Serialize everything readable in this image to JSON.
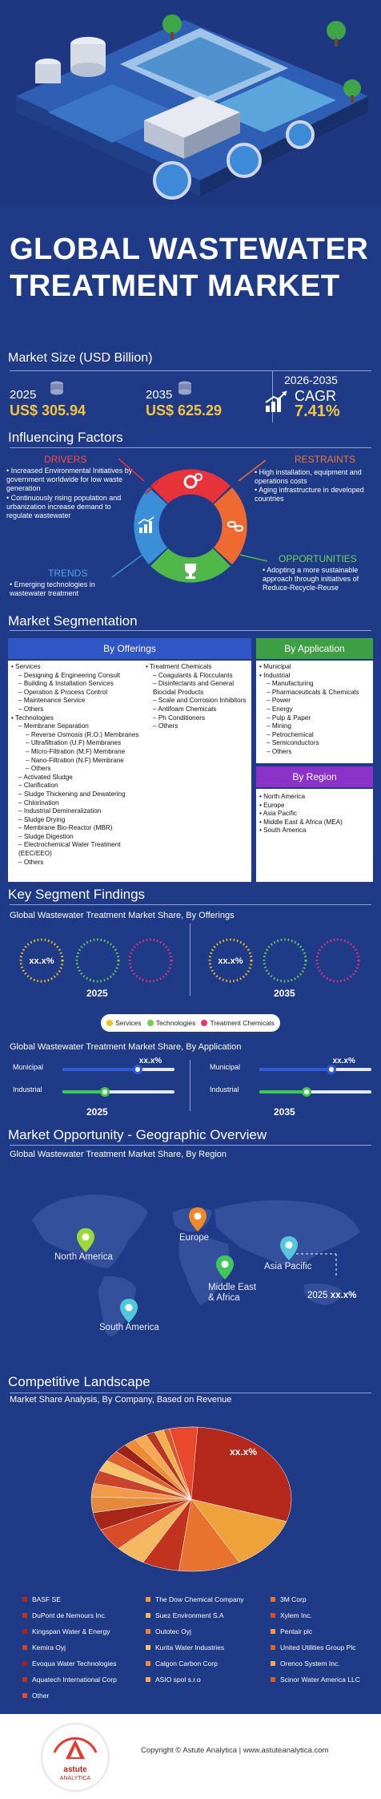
{
  "title": {
    "line1": "GLOBAL WASTEWATER",
    "line2": "TREATMENT MARKET"
  },
  "market_size": {
    "heading": "Market Size (USD Billion)",
    "y2025_year": "2025",
    "y2025_value": "US$ 305.94",
    "y2035_year": "2035",
    "y2035_value": "US$ 625.29",
    "cagr_period": "2026-2035",
    "cagr_label": "CAGR",
    "cagr_value": "7.41%"
  },
  "influencing": {
    "heading": "Influencing Factors",
    "drivers_title": "DRIVERS",
    "drivers": [
      "Increased Environmental Initiatives by government worldwide for low waste generation",
      "Continuously rising population and urbanization increase demand to regulate wastewater"
    ],
    "restraints_title": "RESTRAINTS",
    "restraints": [
      "High installation, equipment and operations costs",
      "Aging infrastructure in developed countries"
    ],
    "trends_title": "TRENDS",
    "trends": [
      "Emerging technologies in wastewater treatment"
    ],
    "opportunities_title": "OPPORTUNITIES",
    "opportunities": [
      "Adopting a more sustainable approach through initiatives of Reduce-Recycle-Reuse"
    ],
    "colors": {
      "drivers": "#e8333a",
      "restraints": "#ef6a2f",
      "opportunities": "#4fb848",
      "trends": "#3a8fd8"
    }
  },
  "segmentation": {
    "heading": "Market Segmentation",
    "offerings_title": "By Offerings",
    "application_title": "By Application",
    "region_title": "By Region",
    "offerings_left": [
      {
        "t": "Services",
        "l": 0
      },
      {
        "t": "Designing & Engineering Consult",
        "l": 1
      },
      {
        "t": "Building & Installation Services",
        "l": 1
      },
      {
        "t": "Operation & Process Control",
        "l": 1
      },
      {
        "t": "Maintenance Service",
        "l": 1
      },
      {
        "t": "Others",
        "l": 1
      },
      {
        "t": "Technologies",
        "l": 0
      },
      {
        "t": "Membrane Separation",
        "l": 1
      },
      {
        "t": "Reverse Osmosis (R.O.) Membranes",
        "l": 2
      },
      {
        "t": "Ultrafiltration (U.F) Membranes",
        "l": 2
      },
      {
        "t": "Micro-Filtration (M.F) Membrane",
        "l": 2
      },
      {
        "t": "Nano-Filtration (N.F) Membrane",
        "l": 2
      },
      {
        "t": "Others",
        "l": 2
      },
      {
        "t": "Activated Sludge",
        "l": 1
      },
      {
        "t": "Clarification",
        "l": 1
      },
      {
        "t": "Sludge Thickening and Dewatering",
        "l": 1
      },
      {
        "t": "Chlorination",
        "l": 1
      },
      {
        "t": "Industrial Demineralization",
        "l": 1
      },
      {
        "t": "Sludge Drying",
        "l": 1
      },
      {
        "t": "Membrane Bio-Reactor (MBR)",
        "l": 1
      },
      {
        "t": "Sludge Digestion",
        "l": 1
      },
      {
        "t": "Electrochemical Water Treatment (EEC/EEO)",
        "l": 1
      },
      {
        "t": "Others",
        "l": 1
      }
    ],
    "offerings_right": [
      {
        "t": "Treatment Chemicals",
        "l": 0
      },
      {
        "t": "Coagulants & Flocculants",
        "l": 1
      },
      {
        "t": "Disinfectants and General Biocidal Products",
        "l": 1
      },
      {
        "t": "Scale and Corrosion Inhibitors",
        "l": 1
      },
      {
        "t": "Antifoam Chemicals",
        "l": 1
      },
      {
        "t": "Ph Conditioners",
        "l": 1
      },
      {
        "t": "Others",
        "l": 1
      }
    ],
    "application": [
      {
        "t": "Municipal",
        "l": 0
      },
      {
        "t": "Industrial",
        "l": 0
      },
      {
        "t": "Manufacturing",
        "l": 1
      },
      {
        "t": "Pharmaceuticals & Chemicals",
        "l": 1
      },
      {
        "t": "Power",
        "l": 1
      },
      {
        "t": "Energy",
        "l": 1
      },
      {
        "t": "Pulp & Paper",
        "l": 1
      },
      {
        "t": "Mining",
        "l": 1
      },
      {
        "t": "Petrochemical",
        "l": 1
      },
      {
        "t": "Semiconductors",
        "l": 1
      },
      {
        "t": "Others",
        "l": 1
      }
    ],
    "region": [
      "North America",
      "Europe",
      "Asia Pacific",
      "Middle East & Africa (MEA)",
      "South America"
    ]
  },
  "key_findings": {
    "heading": "Key Segment Findings",
    "offerings_subtitle": "Global Wastewater Treatment Market Share, By Offerings",
    "donut_label": "xx.x%",
    "year_a": "2025",
    "year_b": "2035",
    "legend": [
      {
        "name": "Services",
        "color": "#f0c419"
      },
      {
        "name": "Technologies",
        "color": "#6cd34b"
      },
      {
        "name": "Treatment Chemicals",
        "color": "#e8337a"
      }
    ],
    "application_subtitle": "Global Wastewater Treatment Market Share, By Application",
    "app_rows": [
      {
        "label": "Municipal",
        "value_label": "xx.x%",
        "color": "#2f5bd6",
        "fill_2025": 0.67,
        "fill_2035": 0.64
      },
      {
        "label": "Industrial",
        "color": "#3ecb4c",
        "fill_2025": 0.38,
        "fill_2035": 0.42
      }
    ]
  },
  "geo": {
    "heading": "Market Opportunity - Geographic Overview",
    "subtitle": "Global Wastewater Treatment Market Share, By Region",
    "regions": [
      {
        "name": "North America",
        "color": "#9bd93a"
      },
      {
        "name": "Europe",
        "color": "#f0892a"
      },
      {
        "name": "Middle East & Africa",
        "color": "#3fc75c"
      },
      {
        "name": "Asia Pacific",
        "color": "#55c7e0"
      },
      {
        "name": "South America",
        "color": "#4fc9d9"
      }
    ],
    "callout_year": "2025",
    "callout_value": "xx.x%"
  },
  "competitive": {
    "heading": "Competitive Landscape",
    "subtitle": "Market Share Analysis, By Company, Based on Revenue",
    "pie_label": "xx.x%",
    "companies": [
      {
        "name": "BASF SE",
        "color": "#b5291c"
      },
      {
        "name": "The Dow Chemical Company",
        "color": "#f0a23a"
      },
      {
        "name": "3M Corp",
        "color": "#e8732e"
      },
      {
        "name": "DuPont de Nemours Inc.",
        "color": "#c2331f"
      },
      {
        "name": "Suez Environment S.A",
        "color": "#f4b860"
      },
      {
        "name": "Xylem Inc.",
        "color": "#d94c28"
      },
      {
        "name": "Kingspan Water & Energy",
        "color": "#a8251a"
      },
      {
        "name": "Outotec Oyj",
        "color": "#e58a3c"
      },
      {
        "name": "Pentair plc",
        "color": "#f29a48"
      },
      {
        "name": "Kemira Oyj",
        "color": "#c9442a"
      },
      {
        "name": "Kurita Water Industries",
        "color": "#f6c46a"
      },
      {
        "name": "United Utilities Group Plc",
        "color": "#e0602c"
      },
      {
        "name": "Evoqua Water Technologies",
        "color": "#9e2218"
      },
      {
        "name": "Calgon Carbon Corp",
        "color": "#ee8d33"
      },
      {
        "name": "Orenco System Inc.",
        "color": "#f7a852"
      },
      {
        "name": "Aquatech International Corp",
        "color": "#b83622"
      },
      {
        "name": "ASIO spol s.r.o",
        "color": "#f3b04d"
      },
      {
        "name": "Scinor Water America LLC",
        "color": "#d85a2a"
      },
      {
        "name": "Other",
        "color": "#e9482c"
      }
    ]
  },
  "footer": {
    "copyright": "Copyright © Astute Analytica  |  www.astuteanalytica.com",
    "brand": "astute",
    "brand2": "ANALYTICA",
    "ring_text": "Powered by Data | Guided by Intelligence"
  }
}
